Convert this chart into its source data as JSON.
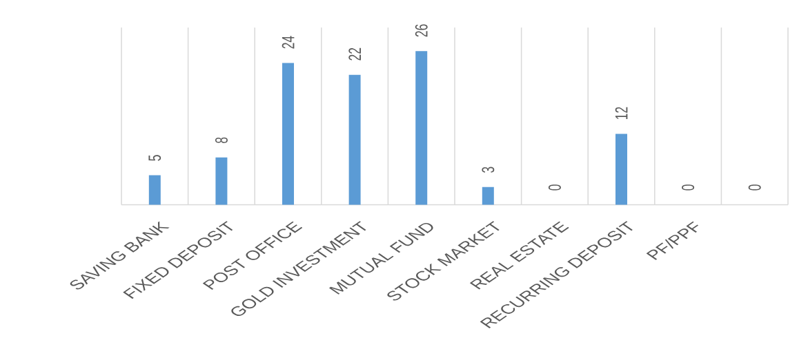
{
  "chart_data": {
    "type": "bar",
    "categories": [
      "SAVING BANK",
      "FIXED DEPOSIT",
      "POST OFFICE",
      "GOLD INVESTMENT",
      "MUTUAL FUND",
      "STOCK MARKET",
      "REAL ESTATE",
      "RECURRING DEPOSIT",
      "PF/PPF",
      null
    ],
    "values": [
      5,
      8,
      24,
      22,
      26,
      3,
      0,
      12,
      0,
      0
    ],
    "color": "#5b9bd5",
    "ylim": [
      0,
      30
    ],
    "data_labels": true,
    "grid": "x",
    "tick_labels": "x"
  }
}
